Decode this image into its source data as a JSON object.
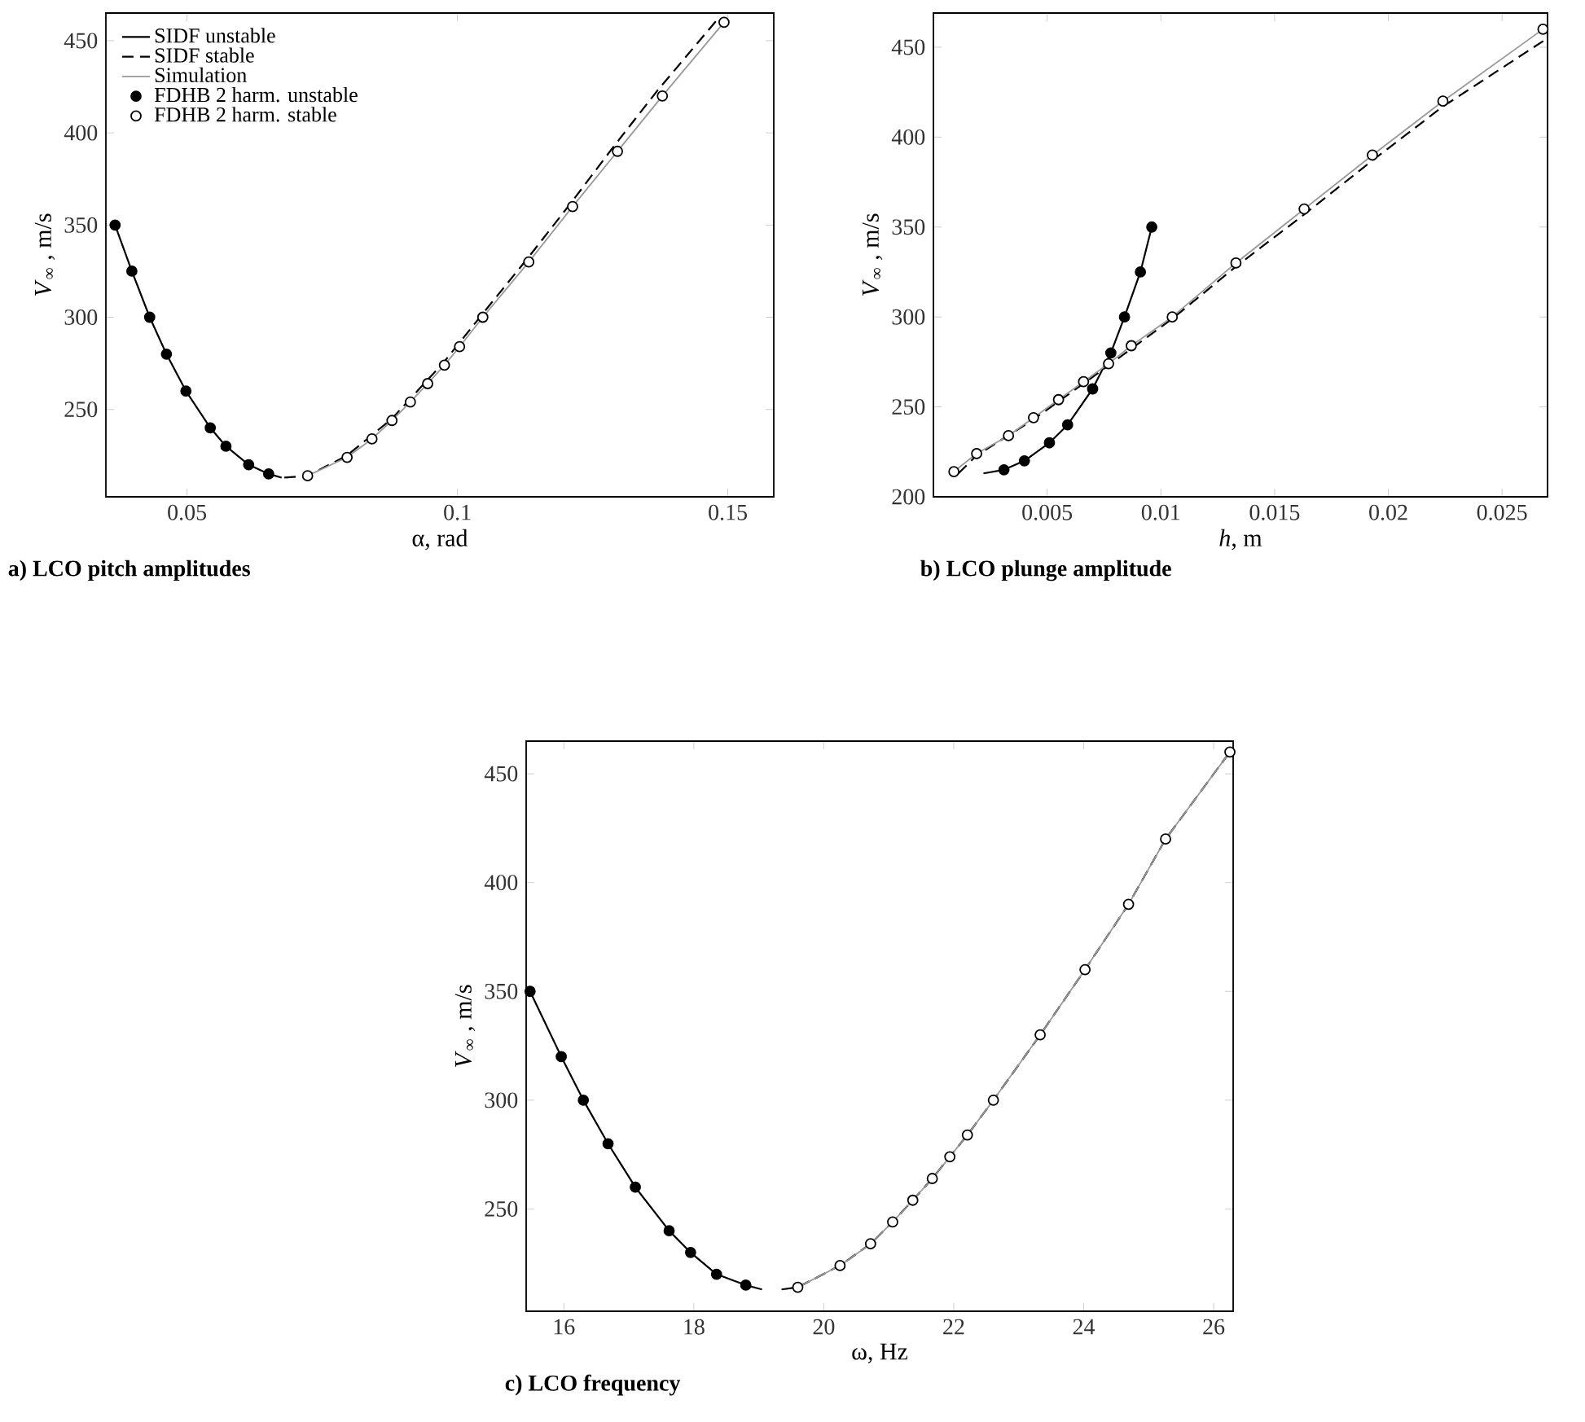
{
  "chart_data": [
    {
      "type": "line",
      "title": "a) LCO pitch amplitudes",
      "xlabel": "α, rad",
      "ylabel": "*V*$_{∞}$ , m/s",
      "xlim": [
        0.035,
        0.1585
      ],
      "ylim": [
        202.6,
        465
      ],
      "xticks": [
        0.05,
        0.1,
        0.15
      ],
      "yticks": [
        250,
        300,
        350,
        400,
        450
      ],
      "legend": "top left",
      "series": [
        {
          "name": "SIDF unstable",
          "color": "#000000",
          "line_style": "solid",
          "marker": "none",
          "x": [
            0.0367,
            0.0398,
            0.0431,
            0.0462,
            0.0498,
            0.0543,
            0.0572,
            0.0614,
            0.0651,
            0.0675
          ],
          "values": [
            350,
            325,
            300,
            280,
            260,
            240,
            230,
            220,
            215,
            213
          ]
        },
        {
          "name": "SIDF stable",
          "color": "#000000",
          "line_style": "dashed",
          "marker": "none",
          "x": [
            0.068,
            0.0723,
            0.0796,
            0.0879,
            0.0976,
            0.1047,
            0.113,
            0.121,
            0.129,
            0.137,
            0.1485
          ],
          "values": [
            213,
            214,
            225,
            245,
            276,
            302,
            332,
            362,
            393,
            423,
            463
          ]
        },
        {
          "name": "Simulation",
          "color": "#999999",
          "line_style": "solid",
          "marker": "none",
          "x": [
            0.0723,
            0.0796,
            0.0842,
            0.0879,
            0.0913,
            0.0945,
            0.0976,
            0.1004,
            0.1047,
            0.1132,
            0.1213,
            0.1296,
            0.1379,
            0.1493
          ],
          "values": [
            214,
            224,
            234,
            244,
            254,
            264,
            274,
            284,
            300,
            330,
            360,
            390,
            420,
            460
          ]
        },
        {
          "name": "FDHB 2 harm. unstable",
          "type": "scatter",
          "color": "#000000",
          "marker": "circle",
          "x": [
            0.0367,
            0.0398,
            0.0431,
            0.0462,
            0.0498,
            0.0543,
            0.0572,
            0.0614,
            0.0651
          ],
          "values": [
            350,
            325,
            300,
            280,
            260,
            240,
            230,
            220,
            215
          ]
        },
        {
          "name": "FDHB 2 harm. stable",
          "type": "scatter",
          "color": "#ffffff",
          "marker": "circle",
          "x": [
            0.0723,
            0.0796,
            0.0842,
            0.0879,
            0.0913,
            0.0945,
            0.0976,
            0.1004,
            0.1047,
            0.1132,
            0.1213,
            0.1296,
            0.1379,
            0.1493
          ],
          "values": [
            214,
            224,
            234,
            244,
            254,
            264,
            274,
            284,
            300,
            330,
            360,
            390,
            420,
            460
          ]
        }
      ]
    },
    {
      "type": "line",
      "title": "b) LCO plunge amplitude",
      "xlabel": "*h*, m",
      "ylabel": "*V*$_{∞}$ , m/s",
      "xlim": [
        0,
        0.027
      ],
      "ylim": [
        200,
        469
      ],
      "xticks": [
        0.005,
        0.01,
        0.015,
        0.02,
        0.025
      ],
      "yticks": [
        200,
        250,
        300,
        350,
        400,
        450
      ],
      "series": [
        {
          "color": "#000000",
          "line_style": "solid",
          "marker": "none",
          "x": [
            0.0096,
            0.0091,
            0.0084,
            0.0078,
            0.007,
            0.0059,
            0.0051,
            0.004,
            0.0031,
            0.0022
          ],
          "values": [
            350,
            325,
            300,
            280,
            260,
            240,
            230,
            220,
            215,
            213
          ]
        },
        {
          "color": "#000000",
          "line_style": "dashed",
          "marker": "none",
          "x": [
            0.0011,
            0.0019,
            0.0044,
            0.0077,
            0.0105,
            0.0133,
            0.0163,
            0.0193,
            0.0224,
            0.027
          ],
          "values": [
            213,
            223,
            243,
            273,
            299,
            328,
            357,
            387,
            417,
            455
          ]
        },
        {
          "color": "#999999",
          "line_style": "solid",
          "marker": "none",
          "x": [
            0.0009,
            0.0019,
            0.0033,
            0.0044,
            0.0055,
            0.0066,
            0.0077,
            0.0087,
            0.0105,
            0.0133,
            0.0163,
            0.0193,
            0.0224,
            0.0268
          ],
          "values": [
            214,
            224,
            234,
            244,
            254,
            264,
            274,
            284,
            300,
            330,
            360,
            390,
            420,
            460
          ]
        },
        {
          "type": "scatter",
          "color": "#000000",
          "marker": "circle",
          "x": [
            0.0096,
            0.0091,
            0.0084,
            0.0078,
            0.007,
            0.0059,
            0.0051,
            0.004,
            0.0031
          ],
          "values": [
            350,
            325,
            300,
            280,
            260,
            240,
            230,
            220,
            215
          ]
        },
        {
          "type": "scatter",
          "color": "#ffffff",
          "marker": "circle",
          "x": [
            0.0009,
            0.0019,
            0.0033,
            0.0044,
            0.0055,
            0.0066,
            0.0077,
            0.0087,
            0.0105,
            0.0133,
            0.0163,
            0.0193,
            0.0224,
            0.0268
          ],
          "values": [
            214,
            224,
            234,
            244,
            254,
            264,
            274,
            284,
            300,
            330,
            360,
            390,
            420,
            460
          ]
        }
      ]
    },
    {
      "type": "line",
      "title": "c) LCO frequency",
      "xlabel": "ω, Hz",
      "ylabel": "*V*$_{∞}$ , m/s",
      "xlim": [
        15.42,
        26.3
      ],
      "ylim": [
        203,
        465
      ],
      "xticks": [
        16,
        18,
        20,
        22,
        24,
        26
      ],
      "yticks": [
        250,
        300,
        350,
        400,
        450
      ],
      "series": [
        {
          "color": "#000000",
          "line_style": "solid",
          "marker": "none",
          "x": [
            15.48,
            15.96,
            16.3,
            16.68,
            17.1,
            17.62,
            17.95,
            18.35,
            18.8,
            19.05
          ],
          "values": [
            350,
            320,
            300,
            280,
            260,
            240,
            230,
            220,
            215,
            213
          ]
        },
        {
          "color": "#000000",
          "line_style": "dashed",
          "marker": "none",
          "x": [
            19.35,
            19.6,
            20.25,
            20.72,
            21.06,
            21.37,
            21.67,
            21.94,
            22.21,
            22.61,
            23.33,
            24.02,
            24.69,
            25.26,
            26.25
          ],
          "values": [
            213,
            214,
            224,
            234,
            244,
            254,
            264,
            274,
            284,
            300,
            330,
            360,
            390,
            420,
            460
          ]
        },
        {
          "color": "#999999",
          "line_style": "solid",
          "marker": "none",
          "x": [
            19.6,
            20.25,
            20.72,
            21.06,
            21.37,
            21.67,
            21.94,
            22.21,
            22.61,
            23.33,
            24.02,
            24.69,
            25.26,
            26.25
          ],
          "values": [
            214,
            224,
            234,
            244,
            254,
            264,
            274,
            284,
            300,
            330,
            360,
            390,
            420,
            460
          ]
        },
        {
          "type": "scatter",
          "color": "#000000",
          "marker": "circle",
          "x": [
            15.48,
            15.96,
            16.3,
            16.68,
            17.1,
            17.62,
            17.95,
            18.35,
            18.8
          ],
          "values": [
            350,
            320,
            300,
            280,
            260,
            240,
            230,
            220,
            215
          ]
        },
        {
          "type": "scatter",
          "color": "#ffffff",
          "marker": "circle",
          "x": [
            19.6,
            20.25,
            20.72,
            21.06,
            21.37,
            21.67,
            21.94,
            22.21,
            22.61,
            23.33,
            24.02,
            24.69,
            25.26,
            26.25
          ],
          "values": [
            214,
            224,
            234,
            244,
            254,
            264,
            274,
            284,
            300,
            330,
            360,
            390,
            420,
            460
          ]
        }
      ]
    }
  ]
}
